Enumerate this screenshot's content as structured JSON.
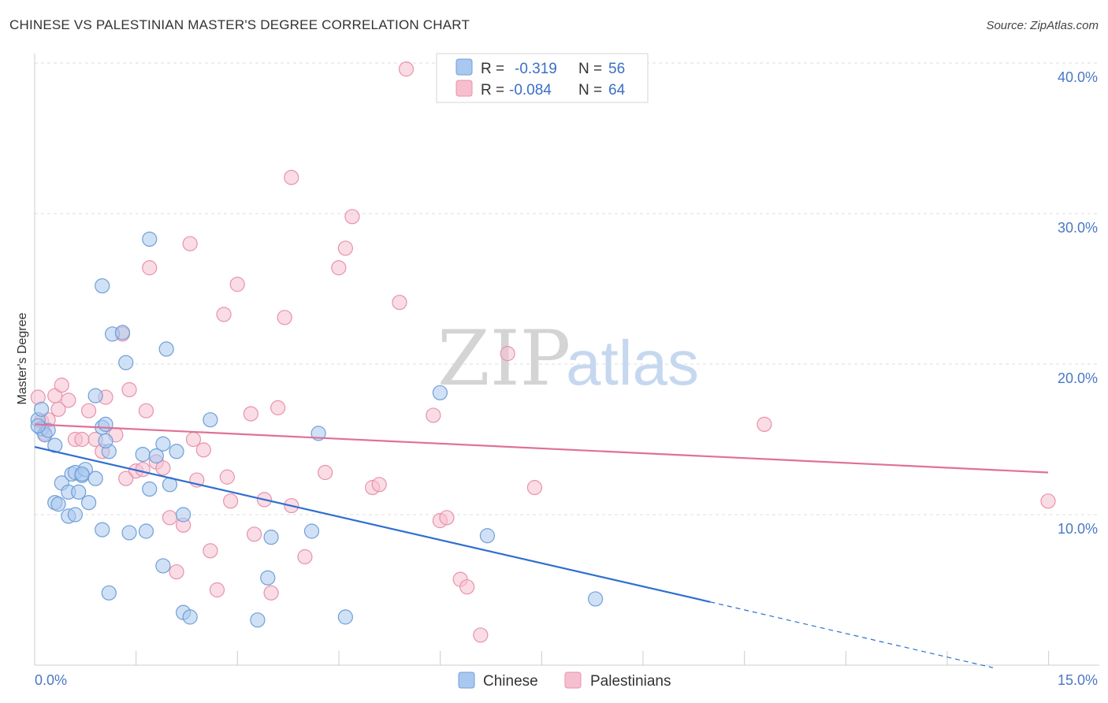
{
  "title": "CHINESE VS PALESTINIAN MASTER'S DEGREE CORRELATION CHART",
  "source": "Source: ZipAtlas.com",
  "watermark": {
    "zip": "ZIP",
    "atlas": "atlas"
  },
  "colors": {
    "chinese_fill": "#a9c8ef",
    "chinese_stroke": "#6f9fd8",
    "chinese_line": "#2e6fd0",
    "palestinian_fill": "#f6bfd0",
    "palestinian_stroke": "#e892ad",
    "palestinian_line": "#e0709a",
    "grid": "#dddddd",
    "tick_text": "#4a78c4"
  },
  "legend": {
    "rows": [
      {
        "r_label": "R =",
        "r_value": "-0.319",
        "n_label": "N =",
        "n_value": "56"
      },
      {
        "r_label": "R =",
        "r_value": "-0.084",
        "n_label": "N =",
        "n_value": "64"
      }
    ]
  },
  "bottom_legend": [
    "Chinese",
    "Palestinians"
  ],
  "chart_data": {
    "type": "scatter",
    "xlabel": "",
    "ylabel": "Master's Degree",
    "xlim": [
      0,
      15
    ],
    "ylim": [
      0,
      40
    ],
    "x_tick_labels": [
      "0.0%",
      "15.0%"
    ],
    "y_ticks": [
      10,
      20,
      30,
      40
    ],
    "y_tick_labels": [
      "10.0%",
      "20.0%",
      "30.0%",
      "40.0%"
    ],
    "grid": "horizontal dashed",
    "legend_position": "top-center",
    "series": [
      {
        "name": "Chinese",
        "trend": {
          "x0": 0,
          "y0": 14.5,
          "x1": 10,
          "y1": 4.2,
          "dashed_to_x": 15,
          "dashed_to_y": -1.0
        },
        "points": [
          [
            0.05,
            16.3
          ],
          [
            0.1,
            15.7
          ],
          [
            0.15,
            15.3
          ],
          [
            0.2,
            15.6
          ],
          [
            0.3,
            14.6
          ],
          [
            0.1,
            17.0
          ],
          [
            0.3,
            10.8
          ],
          [
            0.35,
            10.7
          ],
          [
            0.4,
            12.1
          ],
          [
            0.5,
            11.5
          ],
          [
            0.55,
            12.7
          ],
          [
            0.6,
            12.8
          ],
          [
            0.7,
            12.6
          ],
          [
            0.65,
            11.5
          ],
          [
            0.75,
            13.0
          ],
          [
            0.8,
            10.8
          ],
          [
            0.5,
            9.9
          ],
          [
            0.6,
            10.0
          ],
          [
            0.9,
            12.4
          ],
          [
            1.0,
            15.8
          ],
          [
            1.1,
            14.2
          ],
          [
            1.05,
            16.0
          ],
          [
            1.15,
            22.0
          ],
          [
            1.3,
            22.1
          ],
          [
            1.35,
            20.1
          ],
          [
            1.05,
            14.9
          ],
          [
            1.6,
            14.0
          ],
          [
            1.7,
            11.7
          ],
          [
            1.8,
            13.9
          ],
          [
            1.9,
            14.7
          ],
          [
            2.0,
            12.0
          ],
          [
            2.1,
            14.2
          ],
          [
            2.2,
            10.0
          ],
          [
            1.0,
            9.0
          ],
          [
            1.4,
            8.8
          ],
          [
            1.65,
            8.9
          ],
          [
            1.9,
            6.6
          ],
          [
            1.1,
            4.8
          ],
          [
            2.2,
            3.5
          ],
          [
            2.3,
            3.2
          ],
          [
            1.7,
            28.3
          ],
          [
            1.0,
            25.2
          ],
          [
            0.9,
            17.9
          ],
          [
            1.95,
            21.0
          ],
          [
            2.6,
            16.3
          ],
          [
            3.3,
            3.0
          ],
          [
            3.45,
            5.8
          ],
          [
            3.5,
            8.5
          ],
          [
            4.1,
            8.9
          ],
          [
            4.2,
            15.4
          ],
          [
            4.6,
            3.2
          ],
          [
            6.0,
            18.1
          ],
          [
            6.7,
            8.6
          ],
          [
            8.3,
            4.4
          ],
          [
            0.05,
            15.9
          ],
          [
            0.7,
            12.7
          ]
        ]
      },
      {
        "name": "Palestinians",
        "trend": {
          "x0": 0,
          "y0": 16.0,
          "x1": 15,
          "y1": 12.8
        },
        "points": [
          [
            0.05,
            17.8
          ],
          [
            0.1,
            16.2
          ],
          [
            0.15,
            15.4
          ],
          [
            0.2,
            16.3
          ],
          [
            0.3,
            17.9
          ],
          [
            0.4,
            18.6
          ],
          [
            0.5,
            17.6
          ],
          [
            0.6,
            15.0
          ],
          [
            0.7,
            15.0
          ],
          [
            0.8,
            16.9
          ],
          [
            0.9,
            15.0
          ],
          [
            1.0,
            14.2
          ],
          [
            1.05,
            17.8
          ],
          [
            1.2,
            15.3
          ],
          [
            1.3,
            22.0
          ],
          [
            1.4,
            18.3
          ],
          [
            1.5,
            12.9
          ],
          [
            1.6,
            13.0
          ],
          [
            1.65,
            16.9
          ],
          [
            1.7,
            26.4
          ],
          [
            1.8,
            13.5
          ],
          [
            1.9,
            13.1
          ],
          [
            2.0,
            9.8
          ],
          [
            2.1,
            6.2
          ],
          [
            2.2,
            9.3
          ],
          [
            2.3,
            28.0
          ],
          [
            2.35,
            15.0
          ],
          [
            2.4,
            12.3
          ],
          [
            2.5,
            14.3
          ],
          [
            2.6,
            7.6
          ],
          [
            2.7,
            5.0
          ],
          [
            2.8,
            23.3
          ],
          [
            2.85,
            12.5
          ],
          [
            2.9,
            10.9
          ],
          [
            3.0,
            25.3
          ],
          [
            3.2,
            16.7
          ],
          [
            3.25,
            8.7
          ],
          [
            3.4,
            11.0
          ],
          [
            3.5,
            4.8
          ],
          [
            3.6,
            17.1
          ],
          [
            3.7,
            23.1
          ],
          [
            3.8,
            32.4
          ],
          [
            3.8,
            10.6
          ],
          [
            4.0,
            7.2
          ],
          [
            4.3,
            12.8
          ],
          [
            4.5,
            26.4
          ],
          [
            4.6,
            27.7
          ],
          [
            4.7,
            29.8
          ],
          [
            5.0,
            11.8
          ],
          [
            5.1,
            12.0
          ],
          [
            5.4,
            24.1
          ],
          [
            5.5,
            39.6
          ],
          [
            5.9,
            16.6
          ],
          [
            6.0,
            9.6
          ],
          [
            6.1,
            9.8
          ],
          [
            6.3,
            5.7
          ],
          [
            6.4,
            5.2
          ],
          [
            6.6,
            2.0
          ],
          [
            7.0,
            20.7
          ],
          [
            7.4,
            11.8
          ],
          [
            10.8,
            16.0
          ],
          [
            15.0,
            10.9
          ],
          [
            0.35,
            17.0
          ],
          [
            1.35,
            12.4
          ]
        ]
      }
    ]
  }
}
